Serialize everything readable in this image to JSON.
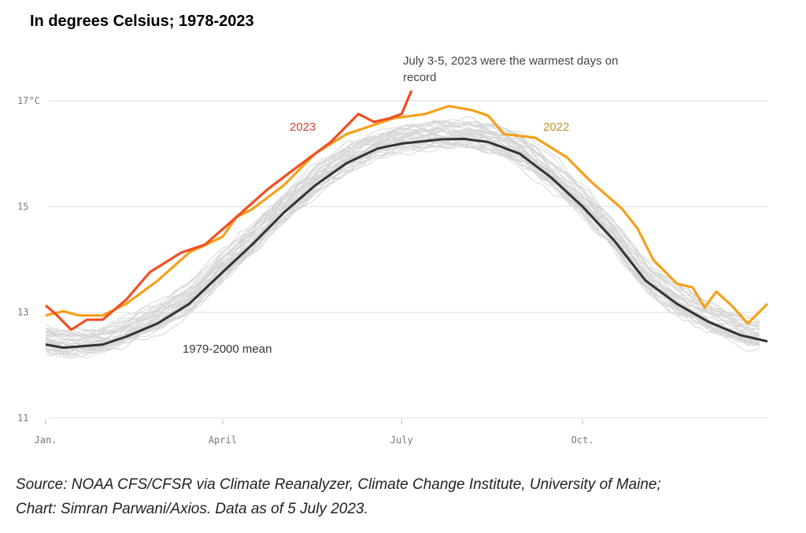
{
  "chart_data": {
    "type": "line",
    "title": "In degrees Celsius; 1978-2023",
    "xlabel": "",
    "ylabel": "",
    "xlim": [
      0,
      365
    ],
    "ylim": [
      11,
      17
    ],
    "y_ticks": [
      {
        "value": 17,
        "label": "17°C"
      },
      {
        "value": 15,
        "label": "15"
      },
      {
        "value": 13,
        "label": "13"
      },
      {
        "value": 11,
        "label": "11"
      }
    ],
    "x_ticks": [
      {
        "value": 0,
        "label": "Jan."
      },
      {
        "value": 90,
        "label": "April"
      },
      {
        "value": 181,
        "label": "July"
      },
      {
        "value": 273,
        "label": "Oct."
      }
    ],
    "grid": true,
    "series": [
      {
        "name": "1979-2000 mean",
        "color": "#333333",
        "x": [
          0,
          9,
          29,
          41,
          57,
          73,
          90,
          105,
          121,
          137,
          153,
          169,
          181,
          201,
          213,
          225,
          241,
          257,
          273,
          289,
          305,
          321,
          337,
          353,
          367
        ],
        "y": [
          12.39,
          12.33,
          12.39,
          12.54,
          12.79,
          13.16,
          13.76,
          14.28,
          14.88,
          15.4,
          15.82,
          16.1,
          16.19,
          16.27,
          16.28,
          16.22,
          16.0,
          15.55,
          15.0,
          14.36,
          13.6,
          13.16,
          12.82,
          12.57,
          12.45
        ]
      },
      {
        "name": "2022",
        "color": "#f5a01a",
        "x": [
          0,
          9,
          17,
          29,
          41,
          57,
          73,
          90,
          97,
          105,
          121,
          137,
          153,
          165,
          177,
          193,
          205,
          217,
          225,
          233,
          249,
          265,
          277,
          293,
          301,
          309,
          321,
          329,
          335,
          341,
          349,
          357,
          363,
          367
        ],
        "y": [
          12.94,
          13.02,
          12.94,
          12.94,
          13.16,
          13.6,
          14.13,
          14.43,
          14.8,
          14.95,
          15.4,
          16.0,
          16.37,
          16.52,
          16.67,
          16.75,
          16.9,
          16.82,
          16.72,
          16.37,
          16.3,
          15.93,
          15.48,
          14.96,
          14.58,
          13.99,
          13.54,
          13.47,
          13.09,
          13.39,
          13.12,
          12.79,
          13.01,
          13.16
        ]
      },
      {
        "name": "2023",
        "color": "#f04e23",
        "x": [
          0,
          5,
          13,
          21,
          29,
          41,
          53,
          69,
          81,
          97,
          113,
          129,
          145,
          159,
          167,
          175,
          181,
          186
        ],
        "y": [
          13.13,
          12.97,
          12.67,
          12.86,
          12.86,
          13.24,
          13.76,
          14.13,
          14.28,
          14.8,
          15.33,
          15.78,
          16.22,
          16.75,
          16.6,
          16.67,
          16.75,
          17.19
        ]
      }
    ],
    "annotations": [
      {
        "text": "July 3-5, 2023 were the warmest days on record"
      },
      {
        "text": "2023"
      },
      {
        "text": "2022"
      },
      {
        "text": "1979-2000 mean"
      }
    ]
  },
  "source_line1": "Source: NOAA CFS/CFSR via Climate Reanalyzer, Climate Change Institute, University of Maine;",
  "source_line2": "Chart: Simran Parwani/Axios. Data as of 5 July 2023."
}
